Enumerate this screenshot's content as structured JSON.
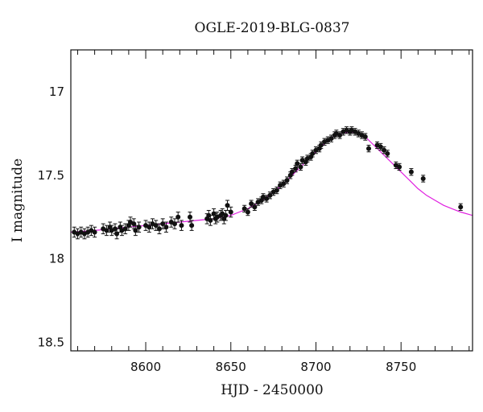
{
  "chart_data": {
    "type": "scatter",
    "title": "OGLE-2019-BLG-0837",
    "xlabel": "HJD - 2450000",
    "ylabel": "I magnitude",
    "xlim": [
      8556,
      8792
    ],
    "ylim": [
      18.55,
      16.75
    ],
    "y_inverted": true,
    "grid": false,
    "colors": {
      "points": "#111111",
      "model": "#e020e0"
    },
    "x_ticks": [
      {
        "value": 8600,
        "label": "8600"
      },
      {
        "value": 8650,
        "label": "8650"
      },
      {
        "value": 8700,
        "label": "8700"
      },
      {
        "value": 8750,
        "label": "8750"
      }
    ],
    "y_ticks": [
      {
        "value": 17.0,
        "label": "17"
      },
      {
        "value": 17.5,
        "label": "17.5"
      },
      {
        "value": 18.0,
        "label": "18"
      },
      {
        "value": 18.5,
        "label": "18.5"
      }
    ],
    "model": {
      "x": [
        8556,
        8570,
        8580,
        8590,
        8600,
        8610,
        8620,
        8630,
        8640,
        8650,
        8655,
        8660,
        8665,
        8670,
        8675,
        8680,
        8685,
        8690,
        8695,
        8700,
        8705,
        8710,
        8715,
        8720,
        8725,
        8730,
        8735,
        8740,
        8745,
        8750,
        8755,
        8760,
        8765,
        8770,
        8775,
        8780,
        8785,
        8792
      ],
      "y": [
        17.84,
        17.83,
        17.82,
        17.81,
        17.8,
        17.79,
        17.78,
        17.77,
        17.76,
        17.74,
        17.72,
        17.7,
        17.67,
        17.64,
        17.6,
        17.56,
        17.51,
        17.46,
        17.41,
        17.36,
        17.31,
        17.27,
        17.25,
        17.24,
        17.25,
        17.28,
        17.33,
        17.38,
        17.43,
        17.48,
        17.53,
        17.58,
        17.62,
        17.65,
        17.68,
        17.7,
        17.72,
        17.74
      ]
    },
    "points": [
      {
        "x": 8558,
        "y": 17.84,
        "err": 0.03
      },
      {
        "x": 8560,
        "y": 17.85,
        "err": 0.03
      },
      {
        "x": 8562,
        "y": 17.84,
        "err": 0.03
      },
      {
        "x": 8564,
        "y": 17.85,
        "err": 0.03
      },
      {
        "x": 8566,
        "y": 17.84,
        "err": 0.03
      },
      {
        "x": 8568,
        "y": 17.83,
        "err": 0.03
      },
      {
        "x": 8570,
        "y": 17.84,
        "err": 0.03
      },
      {
        "x": 8575,
        "y": 17.82,
        "err": 0.03
      },
      {
        "x": 8577,
        "y": 17.83,
        "err": 0.03
      },
      {
        "x": 8579,
        "y": 17.81,
        "err": 0.03
      },
      {
        "x": 8580,
        "y": 17.83,
        "err": 0.03
      },
      {
        "x": 8582,
        "y": 17.82,
        "err": 0.03
      },
      {
        "x": 8583,
        "y": 17.85,
        "err": 0.03
      },
      {
        "x": 8585,
        "y": 17.81,
        "err": 0.03
      },
      {
        "x": 8586,
        "y": 17.83,
        "err": 0.03
      },
      {
        "x": 8588,
        "y": 17.82,
        "err": 0.03
      },
      {
        "x": 8590,
        "y": 17.8,
        "err": 0.03
      },
      {
        "x": 8591,
        "y": 17.78,
        "err": 0.03
      },
      {
        "x": 8593,
        "y": 17.79,
        "err": 0.03
      },
      {
        "x": 8594,
        "y": 17.83,
        "err": 0.03
      },
      {
        "x": 8596,
        "y": 17.81,
        "err": 0.03
      },
      {
        "x": 8600,
        "y": 17.8,
        "err": 0.03
      },
      {
        "x": 8602,
        "y": 17.81,
        "err": 0.03
      },
      {
        "x": 8604,
        "y": 17.79,
        "err": 0.03
      },
      {
        "x": 8606,
        "y": 17.8,
        "err": 0.03
      },
      {
        "x": 8608,
        "y": 17.82,
        "err": 0.03
      },
      {
        "x": 8610,
        "y": 17.79,
        "err": 0.03
      },
      {
        "x": 8612,
        "y": 17.81,
        "err": 0.03
      },
      {
        "x": 8615,
        "y": 17.78,
        "err": 0.03
      },
      {
        "x": 8617,
        "y": 17.79,
        "err": 0.03
      },
      {
        "x": 8619,
        "y": 17.75,
        "err": 0.03
      },
      {
        "x": 8621,
        "y": 17.8,
        "err": 0.03
      },
      {
        "x": 8626,
        "y": 17.75,
        "err": 0.03
      },
      {
        "x": 8627,
        "y": 17.8,
        "err": 0.03
      },
      {
        "x": 8636,
        "y": 17.76,
        "err": 0.03
      },
      {
        "x": 8637,
        "y": 17.74,
        "err": 0.03
      },
      {
        "x": 8638,
        "y": 17.77,
        "err": 0.03
      },
      {
        "x": 8640,
        "y": 17.73,
        "err": 0.03
      },
      {
        "x": 8641,
        "y": 17.76,
        "err": 0.03
      },
      {
        "x": 8642,
        "y": 17.75,
        "err": 0.03
      },
      {
        "x": 8644,
        "y": 17.74,
        "err": 0.03
      },
      {
        "x": 8645,
        "y": 17.73,
        "err": 0.03
      },
      {
        "x": 8646,
        "y": 17.76,
        "err": 0.03
      },
      {
        "x": 8647,
        "y": 17.74,
        "err": 0.03
      },
      {
        "x": 8648,
        "y": 17.68,
        "err": 0.03
      },
      {
        "x": 8650,
        "y": 17.72,
        "err": 0.03
      },
      {
        "x": 8658,
        "y": 17.7,
        "err": 0.02
      },
      {
        "x": 8660,
        "y": 17.72,
        "err": 0.02
      },
      {
        "x": 8662,
        "y": 17.67,
        "err": 0.02
      },
      {
        "x": 8664,
        "y": 17.69,
        "err": 0.02
      },
      {
        "x": 8666,
        "y": 17.66,
        "err": 0.02
      },
      {
        "x": 8668,
        "y": 17.65,
        "err": 0.02
      },
      {
        "x": 8669,
        "y": 17.63,
        "err": 0.02
      },
      {
        "x": 8671,
        "y": 17.64,
        "err": 0.02
      },
      {
        "x": 8673,
        "y": 17.62,
        "err": 0.02
      },
      {
        "x": 8675,
        "y": 17.6,
        "err": 0.02
      },
      {
        "x": 8677,
        "y": 17.59,
        "err": 0.02
      },
      {
        "x": 8679,
        "y": 17.56,
        "err": 0.02
      },
      {
        "x": 8681,
        "y": 17.55,
        "err": 0.02
      },
      {
        "x": 8683,
        "y": 17.53,
        "err": 0.02
      },
      {
        "x": 8685,
        "y": 17.5,
        "err": 0.02
      },
      {
        "x": 8686,
        "y": 17.48,
        "err": 0.02
      },
      {
        "x": 8688,
        "y": 17.46,
        "err": 0.02
      },
      {
        "x": 8689,
        "y": 17.43,
        "err": 0.02
      },
      {
        "x": 8691,
        "y": 17.45,
        "err": 0.02
      },
      {
        "x": 8692,
        "y": 17.41,
        "err": 0.02
      },
      {
        "x": 8694,
        "y": 17.42,
        "err": 0.02
      },
      {
        "x": 8695,
        "y": 17.4,
        "err": 0.02
      },
      {
        "x": 8697,
        "y": 17.39,
        "err": 0.02
      },
      {
        "x": 8698,
        "y": 17.37,
        "err": 0.02
      },
      {
        "x": 8700,
        "y": 17.35,
        "err": 0.02
      },
      {
        "x": 8702,
        "y": 17.34,
        "err": 0.02
      },
      {
        "x": 8703,
        "y": 17.32,
        "err": 0.02
      },
      {
        "x": 8705,
        "y": 17.3,
        "err": 0.02
      },
      {
        "x": 8707,
        "y": 17.29,
        "err": 0.02
      },
      {
        "x": 8709,
        "y": 17.28,
        "err": 0.02
      },
      {
        "x": 8711,
        "y": 17.26,
        "err": 0.02
      },
      {
        "x": 8712,
        "y": 17.25,
        "err": 0.02
      },
      {
        "x": 8714,
        "y": 17.26,
        "err": 0.02
      },
      {
        "x": 8716,
        "y": 17.24,
        "err": 0.02
      },
      {
        "x": 8718,
        "y": 17.23,
        "err": 0.02
      },
      {
        "x": 8720,
        "y": 17.24,
        "err": 0.02
      },
      {
        "x": 8721,
        "y": 17.23,
        "err": 0.02
      },
      {
        "x": 8723,
        "y": 17.24,
        "err": 0.02
      },
      {
        "x": 8725,
        "y": 17.25,
        "err": 0.02
      },
      {
        "x": 8727,
        "y": 17.26,
        "err": 0.02
      },
      {
        "x": 8729,
        "y": 17.27,
        "err": 0.02
      },
      {
        "x": 8731,
        "y": 17.34,
        "err": 0.02
      },
      {
        "x": 8736,
        "y": 17.32,
        "err": 0.02
      },
      {
        "x": 8738,
        "y": 17.33,
        "err": 0.02
      },
      {
        "x": 8740,
        "y": 17.35,
        "err": 0.02
      },
      {
        "x": 8742,
        "y": 17.37,
        "err": 0.02
      },
      {
        "x": 8747,
        "y": 17.44,
        "err": 0.02
      },
      {
        "x": 8749,
        "y": 17.45,
        "err": 0.02
      },
      {
        "x": 8756,
        "y": 17.48,
        "err": 0.02
      },
      {
        "x": 8763,
        "y": 17.52,
        "err": 0.02
      },
      {
        "x": 8785,
        "y": 17.69,
        "err": 0.02
      }
    ]
  }
}
